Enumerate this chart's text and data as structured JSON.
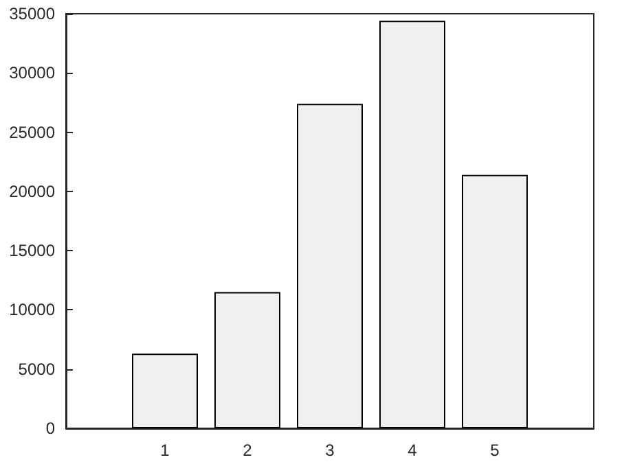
{
  "chart_data": {
    "type": "bar",
    "x": [
      1,
      2,
      3,
      4,
      5
    ],
    "values": [
      6300,
      11500,
      27400,
      34400,
      21400
    ],
    "color": "#f0f0f0",
    "xlim": [
      -0.2,
      6.2
    ],
    "xticks": [
      1,
      2,
      3,
      4,
      5
    ],
    "ylim": [
      0,
      35000
    ],
    "yticks": [
      0,
      5000,
      10000,
      15000,
      20000,
      25000,
      30000,
      35000
    ],
    "grid": false
  }
}
